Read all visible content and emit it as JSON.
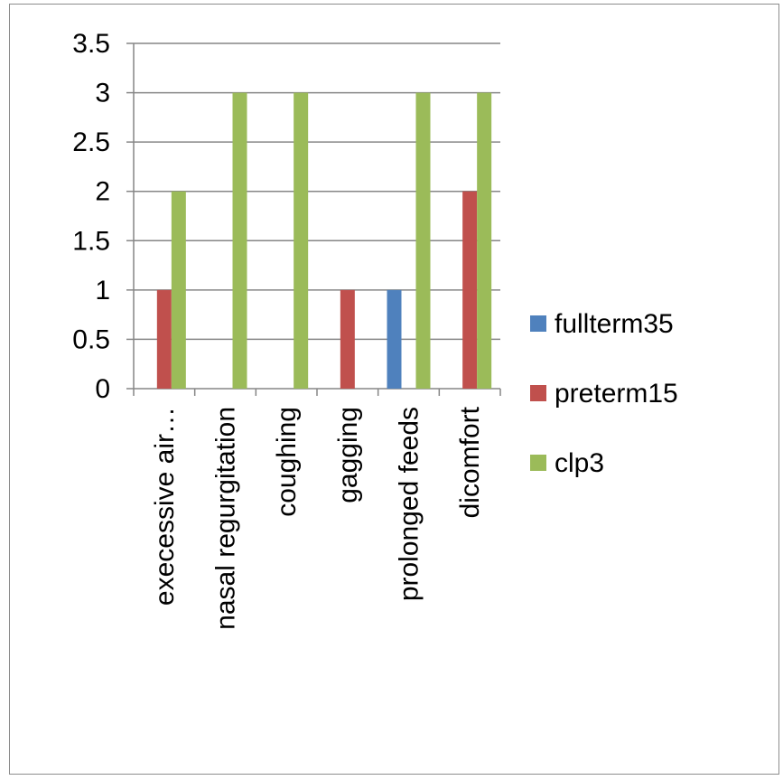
{
  "chart_data": {
    "type": "bar",
    "categories": [
      "execessive air…",
      "nasal regurgitation",
      "coughing",
      "gagging",
      "prolonged feeds",
      "dicomfort"
    ],
    "series": [
      {
        "name": "fullterm35",
        "color": "#4f81bd",
        "values": [
          0,
          0,
          0,
          0,
          1,
          0
        ]
      },
      {
        "name": "preterm15",
        "color": "#c0504d",
        "values": [
          1,
          0,
          0,
          1,
          0,
          2
        ]
      },
      {
        "name": "clp3",
        "color": "#9bbb59",
        "values": [
          2,
          3,
          3,
          0,
          3,
          3
        ]
      }
    ],
    "ylim": [
      0,
      3.5
    ],
    "yticks": [
      0,
      0.5,
      1,
      1.5,
      2,
      2.5,
      3,
      3.5
    ],
    "ytick_labels": [
      "0",
      "0.5",
      "1",
      "1.5",
      "2",
      "2.5",
      "3",
      "3.5"
    ],
    "grid": true,
    "legend_position": "right"
  }
}
